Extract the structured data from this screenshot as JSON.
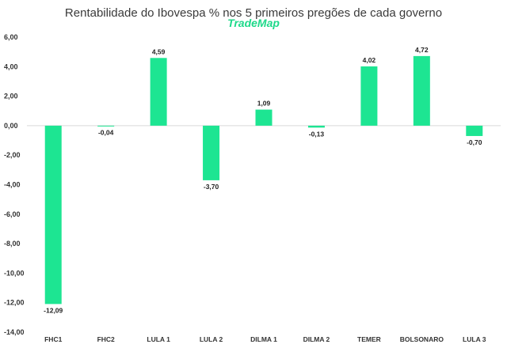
{
  "chart_data": {
    "type": "bar",
    "title": "Rentabilidade do Ibovespa % nos 5 primeiros pregões de cada governo",
    "subtitle": "TradeMap",
    "categories": [
      "FHC1",
      "FHC2",
      "LULA 1",
      "LULA 2",
      "DILMA 1",
      "DILMA 2",
      "TEMER",
      "BOLSONARO",
      "LULA 3"
    ],
    "values": [
      -12.09,
      -0.04,
      4.59,
      -3.7,
      1.09,
      -0.13,
      4.02,
      4.72,
      -0.7
    ],
    "value_labels": [
      "-12,09",
      "-0,04",
      "4,59",
      "-3,70",
      "1,09",
      "-0,13",
      "4,02",
      "4,72",
      "-0,70"
    ],
    "ylim": [
      -14,
      6
    ],
    "yticks": [
      6,
      4,
      2,
      0,
      -2,
      -4,
      -6,
      -8,
      -10,
      -12,
      -14
    ],
    "ytick_labels": [
      "6,00",
      "4,00",
      "2,00",
      "0,00",
      "-2,00",
      "-4,00",
      "-6,00",
      "-8,00",
      "-10,00",
      "-12,00",
      "-14,00"
    ],
    "xlabel": "",
    "ylabel": "",
    "grid": false,
    "bar_color": "#1de592",
    "brand_color": "#1ed98a"
  }
}
